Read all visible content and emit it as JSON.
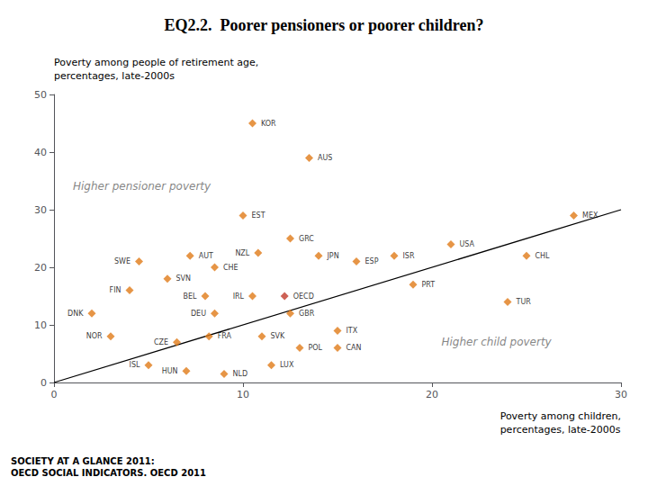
{
  "chart_data": {
    "type": "scatter",
    "title": "EQ2.2.  Poorer pensioners or poorer children?",
    "ylabel": "Poverty among people of retirement age,\npercentages, late-2000s",
    "xlabel": "Poverty among children,\npercentages, late-2000s",
    "footnote": "SOCIETY AT A GLANCE 2011:\nOECD SOCIAL INDICATORS. OECD 2011",
    "xlim": [
      0,
      30
    ],
    "ylim": [
      0,
      50
    ],
    "xticks": [
      0,
      10,
      20,
      30
    ],
    "yticks": [
      0,
      10,
      20,
      30,
      40,
      50
    ],
    "grid": false,
    "annotations": [
      {
        "text": "Higher pensioner poverty",
        "x": 1.0,
        "y": 34
      },
      {
        "text": "Higher child poverty",
        "x": 20.5,
        "y": 7
      }
    ],
    "series": [
      {
        "type": "line",
        "line_style": "solid",
        "color": "#000000",
        "x": [
          0,
          30
        ],
        "values": [
          0,
          30
        ]
      },
      {
        "type": "scatter",
        "marker": "diamond",
        "labels": [
          "KOR",
          "AUS",
          "EST",
          "GRC",
          "NZL",
          "ESP",
          "JPN",
          "ISR",
          "USA",
          "MEX",
          "CHL",
          "TUR",
          "PRT",
          "GBR",
          "IRL",
          "OECD",
          "SWE",
          "AUT",
          "CHE",
          "SVN",
          "FIN",
          "BEL",
          "DEU",
          "DNK",
          "NOR",
          "CZE",
          "FRA",
          "SVK",
          "POL",
          "CAN",
          "ITX",
          "ISL",
          "HUN",
          "NLD",
          "LUX"
        ],
        "x": [
          10.5,
          13.5,
          10.0,
          12.5,
          10.8,
          16.0,
          14.0,
          18.0,
          21.0,
          27.5,
          25.0,
          24.0,
          19.0,
          12.5,
          10.5,
          12.2,
          4.5,
          7.2,
          8.5,
          6.0,
          4.0,
          8.0,
          8.5,
          2.0,
          3.0,
          6.5,
          8.2,
          11.0,
          13.0,
          15.0,
          15.0,
          5.0,
          7.0,
          9.0,
          11.5
        ],
        "values": [
          45,
          39,
          29,
          25,
          22.5,
          21,
          22,
          22,
          24,
          29,
          22,
          14,
          17,
          12,
          15,
          15,
          21,
          22,
          20,
          18,
          16,
          15,
          12,
          12,
          8,
          7,
          8,
          8,
          6,
          6,
          9,
          3,
          2,
          1.5,
          3
        ],
        "colors": [
          "#e07b18",
          "#e07b18",
          "#e07b18",
          "#e07b18",
          "#e07b18",
          "#e07b18",
          "#e07b18",
          "#e07b18",
          "#e07b18",
          "#e07b18",
          "#e07b18",
          "#e07b18",
          "#e07b18",
          "#e07b18",
          "#e07b18",
          "#c0392b",
          "#e07b18",
          "#e07b18",
          "#e07b18",
          "#e07b18",
          "#e07b18",
          "#e07b18",
          "#e07b18",
          "#e07b18",
          "#e07b18",
          "#e07b18",
          "#e07b18",
          "#e07b18",
          "#e07b18",
          "#e07b18",
          "#e07b18",
          "#e07b18",
          "#e07b18",
          "#e07b18",
          "#e07b18"
        ]
      }
    ]
  }
}
